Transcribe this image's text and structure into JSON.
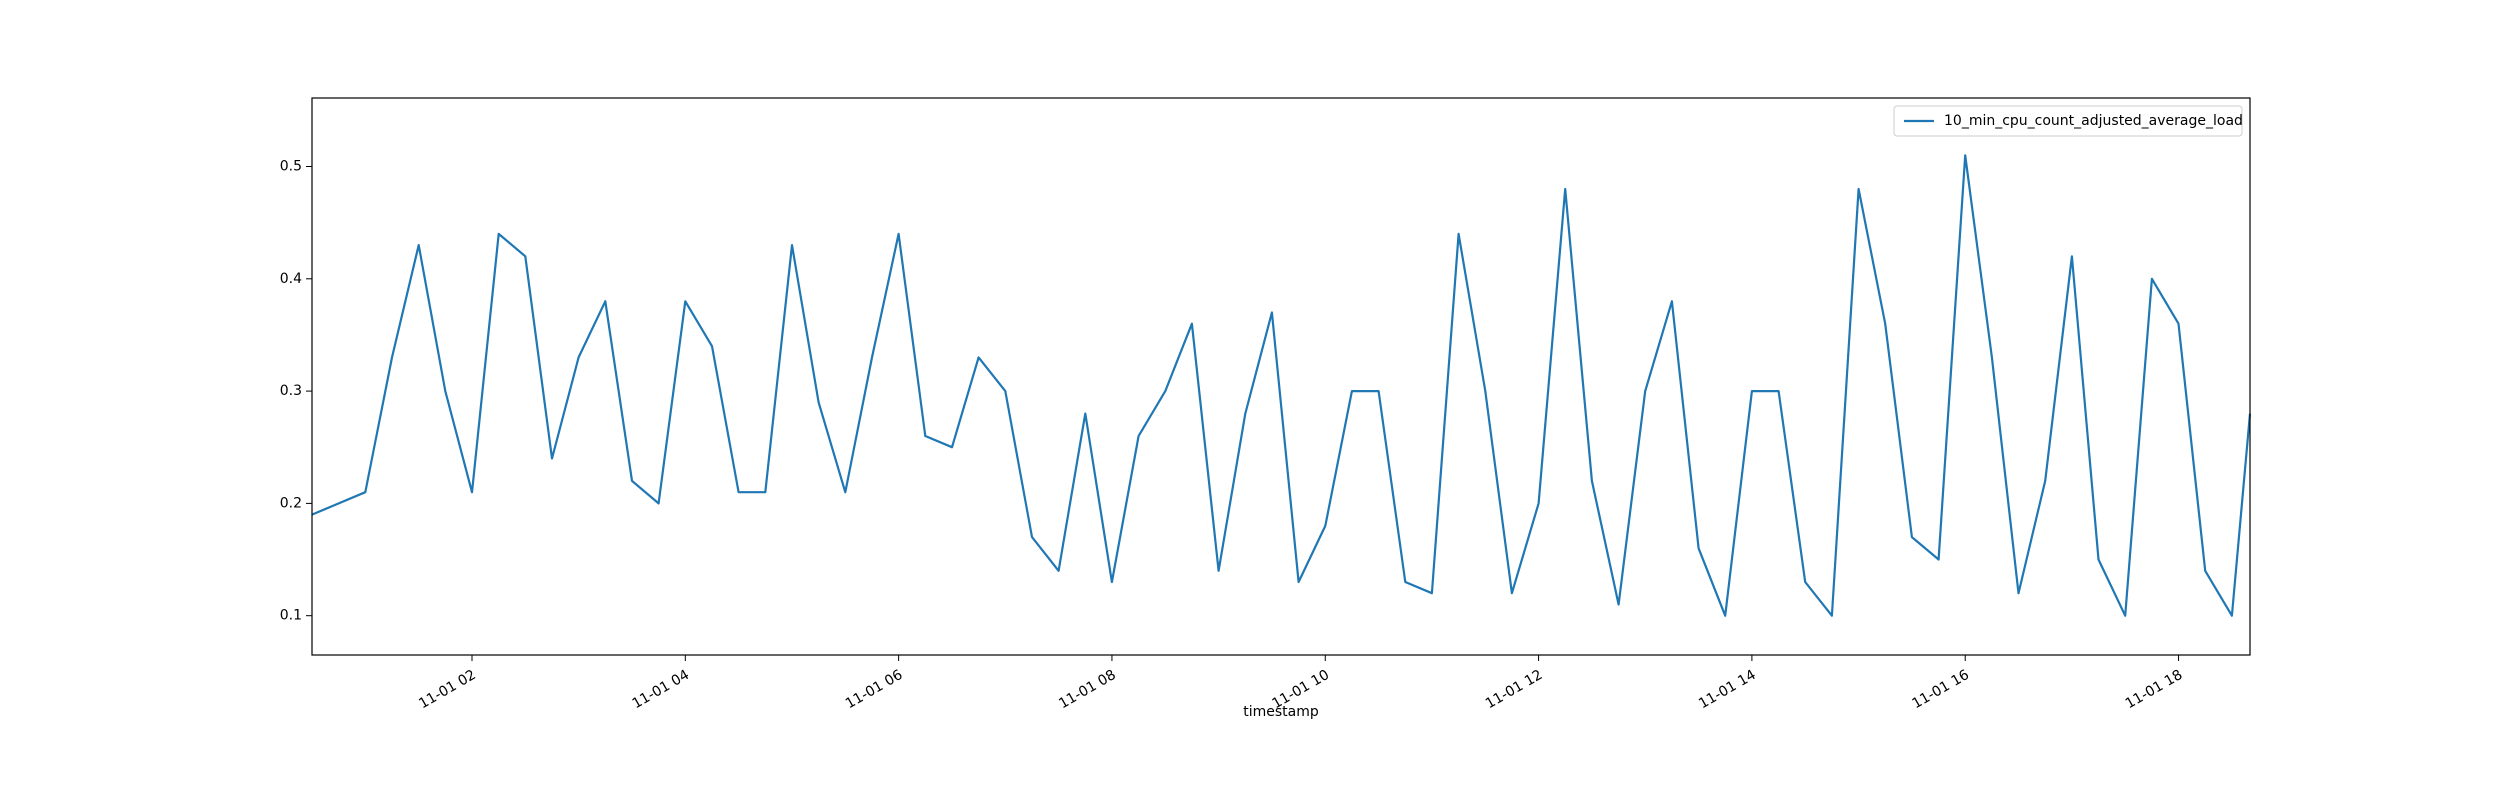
{
  "chart_data": {
    "type": "line",
    "xlabel": "timestamp",
    "x": [
      0.5,
      0.75,
      1.0,
      1.25,
      1.5,
      1.75,
      2.0,
      2.25,
      2.5,
      2.75,
      3.0,
      3.25,
      3.5,
      3.75,
      4.0,
      4.25,
      4.5,
      4.75,
      5.0,
      5.25,
      5.5,
      5.75,
      6.0,
      6.25,
      6.5,
      6.75,
      7.0,
      7.25,
      7.5,
      7.75,
      8.0,
      8.25,
      8.5,
      8.75,
      9.0,
      9.25,
      9.5,
      9.75,
      10.0,
      10.25,
      10.5,
      10.75,
      11.0,
      11.25,
      11.5,
      11.75,
      12.0,
      12.25,
      12.5,
      12.75,
      13.0,
      13.25,
      13.5,
      13.75,
      14.0,
      14.25,
      14.5,
      14.75,
      15.0,
      15.25,
      15.5,
      15.75,
      16.0,
      16.25,
      16.5,
      16.75,
      17.0,
      17.25,
      17.5,
      17.75,
      18.0,
      18.25,
      18.5,
      18.67
    ],
    "series": [
      {
        "name": "10_min_cpu_count_adjusted_average_load",
        "color": "#1f77b4",
        "values": [
          0.19,
          0.2,
          0.21,
          0.33,
          0.43,
          0.3,
          0.21,
          0.44,
          0.42,
          0.24,
          0.33,
          0.38,
          0.22,
          0.2,
          0.38,
          0.34,
          0.21,
          0.21,
          0.43,
          0.29,
          0.21,
          0.33,
          0.44,
          0.26,
          0.25,
          0.33,
          0.3,
          0.17,
          0.14,
          0.28,
          0.13,
          0.26,
          0.3,
          0.36,
          0.14,
          0.28,
          0.37,
          0.13,
          0.18,
          0.3,
          0.3,
          0.13,
          0.12,
          0.44,
          0.3,
          0.12,
          0.2,
          0.48,
          0.22,
          0.11,
          0.3,
          0.38,
          0.16,
          0.1,
          0.3,
          0.3,
          0.13,
          0.1,
          0.48,
          0.36,
          0.17,
          0.15,
          0.51,
          0.33,
          0.12,
          0.22,
          0.42,
          0.15,
          0.1,
          0.4,
          0.36,
          0.14,
          0.1,
          0.28
        ]
      }
    ],
    "xlim": [
      0.5,
      18.67
    ],
    "ylim": [
      0.065,
      0.561
    ],
    "xticks": [
      {
        "value": 2,
        "label": "11-01 02"
      },
      {
        "value": 4,
        "label": "11-01 04"
      },
      {
        "value": 6,
        "label": "11-01 06"
      },
      {
        "value": 8,
        "label": "11-01 08"
      },
      {
        "value": 10,
        "label": "11-01 10"
      },
      {
        "value": 12,
        "label": "11-01 12"
      },
      {
        "value": 14,
        "label": "11-01 14"
      },
      {
        "value": 16,
        "label": "11-01 16"
      },
      {
        "value": 18,
        "label": "11-01 18"
      }
    ],
    "yticks": [
      0.1,
      0.2,
      0.3,
      0.4,
      0.5
    ],
    "legend": "upper right"
  }
}
